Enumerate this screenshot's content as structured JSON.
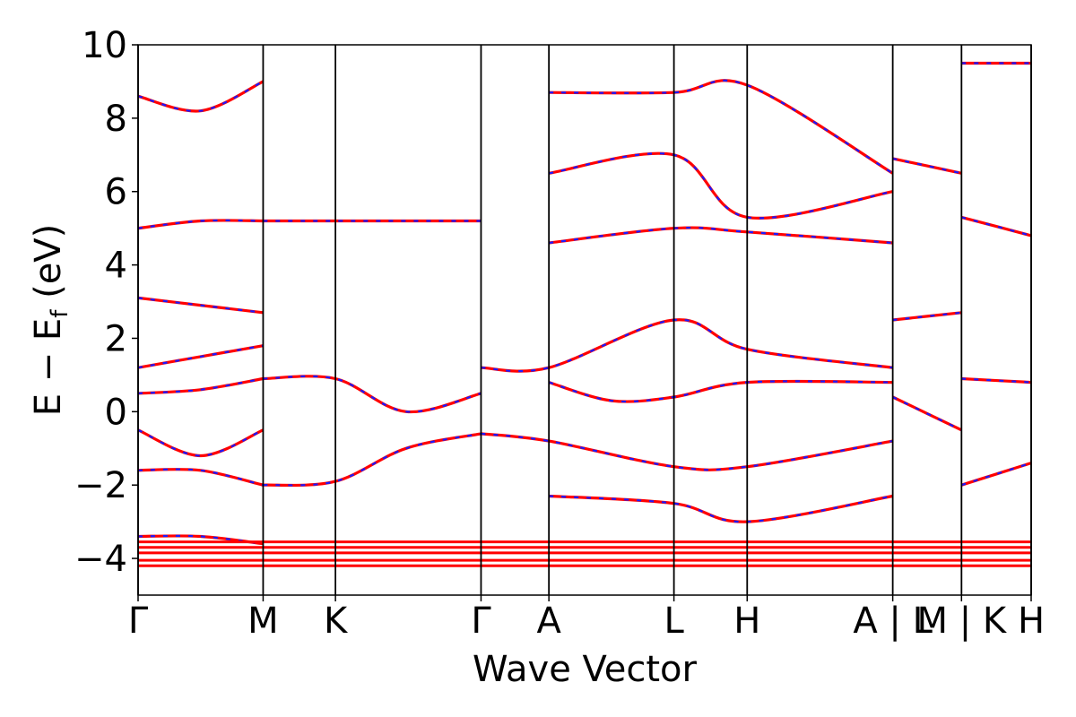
{
  "chart_data": {
    "type": "line",
    "title": "",
    "xlabel": "Wave Vector",
    "ylabel": "E − E_f (eV)",
    "ylabel_parts": {
      "main": "E − E",
      "sub": "f",
      "unit": " (eV)"
    },
    "ylim": [
      -5,
      10
    ],
    "yticks": [
      -4,
      -2,
      0,
      2,
      4,
      6,
      8,
      10
    ],
    "ytick_labels": [
      "−4",
      "−2",
      "0",
      "2",
      "4",
      "6",
      "8",
      "10"
    ],
    "grid": false,
    "legend": "none",
    "path_coordinate_range": [
      0,
      10
    ],
    "high_symmetry_points": [
      {
        "label": "Γ",
        "x": 0.0
      },
      {
        "label": "M",
        "x": 1.4
      },
      {
        "label": "K",
        "x": 2.21
      },
      {
        "label": "Γ",
        "x": 3.84
      },
      {
        "label": "A",
        "x": 4.6
      },
      {
        "label": "L",
        "x": 6.0
      },
      {
        "label": "H",
        "x": 6.82
      },
      {
        "label": "A | L",
        "x": 8.45
      },
      {
        "label": "M | K",
        "x": 9.22
      },
      {
        "label": "H",
        "x": 10.0
      }
    ],
    "series": [
      {
        "style": "solid",
        "color": "#ff0000",
        "points": [
          [
            0.0,
            -0.5
          ],
          [
            0.7,
            -1.2
          ],
          [
            1.4,
            -0.5
          ]
        ]
      },
      {
        "style": "solid",
        "color": "#ff0000",
        "points": [
          [
            0.0,
            0.5
          ],
          [
            0.7,
            0.6
          ],
          [
            1.4,
            0.9
          ]
        ]
      },
      {
        "style": "solid",
        "color": "#ff0000",
        "points": [
          [
            0.0,
            1.2
          ],
          [
            0.7,
            1.5
          ],
          [
            1.4,
            1.8
          ]
        ]
      },
      {
        "style": "solid",
        "color": "#ff0000",
        "points": [
          [
            0.0,
            3.1
          ],
          [
            0.7,
            2.9
          ],
          [
            1.4,
            2.7
          ]
        ]
      },
      {
        "style": "solid",
        "color": "#ff0000",
        "points": [
          [
            0.0,
            5.0
          ],
          [
            0.7,
            5.2
          ],
          [
            1.4,
            5.2
          ]
        ]
      },
      {
        "style": "solid",
        "color": "#ff0000",
        "points": [
          [
            0.0,
            8.6
          ],
          [
            0.7,
            8.2
          ],
          [
            1.4,
            9.0
          ]
        ]
      },
      {
        "style": "solid",
        "color": "#ff0000",
        "points": [
          [
            0.0,
            -1.6
          ],
          [
            0.7,
            -1.6
          ],
          [
            1.4,
            -2.0
          ]
        ]
      },
      {
        "style": "solid",
        "color": "#ff0000",
        "points": [
          [
            0.0,
            -3.4
          ],
          [
            0.7,
            -3.4
          ],
          [
            1.4,
            -3.6
          ]
        ]
      },
      {
        "style": "solid",
        "color": "#ff0000",
        "points": [
          [
            1.4,
            -2.0
          ],
          [
            2.21,
            -1.9
          ],
          [
            3.0,
            -1.0
          ],
          [
            3.84,
            -0.6
          ]
        ]
      },
      {
        "style": "solid",
        "color": "#ff0000",
        "points": [
          [
            1.4,
            0.9
          ],
          [
            2.21,
            0.9
          ],
          [
            3.0,
            0.0
          ],
          [
            3.84,
            0.5
          ]
        ]
      },
      {
        "style": "solid",
        "color": "#ff0000",
        "points": [
          [
            1.4,
            5.2
          ],
          [
            2.21,
            5.2
          ],
          [
            3.84,
            5.2
          ]
        ]
      },
      {
        "style": "solid",
        "color": "#ff0000",
        "points": [
          [
            3.84,
            1.2
          ],
          [
            4.6,
            1.2
          ],
          [
            6.0,
            2.5
          ],
          [
            6.82,
            1.7
          ],
          [
            8.45,
            1.2
          ]
        ]
      },
      {
        "style": "solid",
        "color": "#ff0000",
        "points": [
          [
            3.84,
            -0.6
          ],
          [
            4.6,
            -0.8
          ],
          [
            6.0,
            -1.5
          ],
          [
            6.82,
            -1.5
          ],
          [
            8.45,
            -0.8
          ]
        ]
      },
      {
        "style": "solid",
        "color": "#ff0000",
        "points": [
          [
            4.6,
            6.5
          ],
          [
            6.0,
            7.0
          ],
          [
            6.82,
            5.3
          ],
          [
            8.45,
            6.0
          ]
        ]
      },
      {
        "style": "solid",
        "color": "#ff0000",
        "points": [
          [
            4.6,
            0.8
          ],
          [
            5.3,
            0.3
          ],
          [
            6.0,
            0.4
          ],
          [
            6.82,
            0.8
          ],
          [
            8.45,
            0.8
          ]
        ]
      },
      {
        "style": "solid",
        "color": "#ff0000",
        "points": [
          [
            4.6,
            -2.3
          ],
          [
            6.0,
            -2.5
          ],
          [
            6.82,
            -3.0
          ],
          [
            8.45,
            -2.3
          ]
        ]
      },
      {
        "style": "solid",
        "color": "#ff0000",
        "points": [
          [
            4.6,
            4.6
          ],
          [
            6.0,
            5.0
          ],
          [
            6.82,
            4.9
          ],
          [
            8.45,
            4.6
          ]
        ]
      },
      {
        "style": "solid",
        "color": "#ff0000",
        "points": [
          [
            4.6,
            8.7
          ],
          [
            6.0,
            8.7
          ],
          [
            6.82,
            8.9
          ],
          [
            8.45,
            6.5
          ]
        ]
      },
      {
        "style": "solid",
        "color": "#ff0000",
        "points": [
          [
            8.45,
            0.4
          ],
          [
            9.22,
            -0.5
          ]
        ]
      },
      {
        "style": "solid",
        "color": "#ff0000",
        "points": [
          [
            8.45,
            2.5
          ],
          [
            9.22,
            2.7
          ]
        ]
      },
      {
        "style": "solid",
        "color": "#ff0000",
        "points": [
          [
            8.45,
            6.9
          ],
          [
            9.22,
            6.5
          ]
        ]
      },
      {
        "style": "solid",
        "color": "#ff0000",
        "points": [
          [
            9.22,
            0.9
          ],
          [
            10.0,
            0.8
          ]
        ]
      },
      {
        "style": "solid",
        "color": "#ff0000",
        "points": [
          [
            9.22,
            5.3
          ],
          [
            10.0,
            4.8
          ]
        ]
      },
      {
        "style": "solid",
        "color": "#ff0000",
        "points": [
          [
            9.22,
            9.5
          ],
          [
            10.0,
            9.5
          ]
        ]
      },
      {
        "style": "solid",
        "color": "#ff0000",
        "points": [
          [
            9.22,
            -2.0
          ],
          [
            10.0,
            -1.4
          ]
        ]
      }
    ]
  }
}
